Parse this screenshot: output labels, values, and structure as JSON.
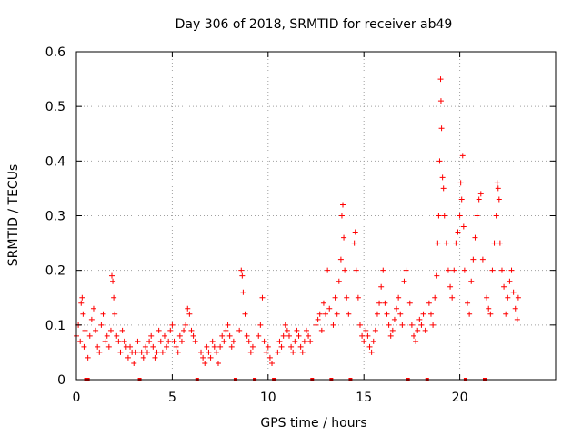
{
  "chart_data": {
    "type": "scatter",
    "title": "Day 306 of 2018, SRMTID for receiver ab49",
    "xlabel": "GPS time / hours",
    "ylabel": "SRMTID / TECUs",
    "xlim": [
      0,
      25
    ],
    "ylim": [
      0,
      0.6
    ],
    "xticks": [
      0,
      5,
      10,
      15,
      20
    ],
    "xtick_labels": [
      "0",
      "5",
      "10",
      "15",
      "20"
    ],
    "yticks": [
      0,
      0.1,
      0.2,
      0.3,
      0.4,
      0.5,
      0.6
    ],
    "ytick_labels": [
      "0",
      "0.1",
      "0.2",
      "0.3",
      "0.4",
      "0.5",
      "0.6"
    ],
    "grid": true,
    "marker": "+",
    "color": "#ff0000",
    "data_gap_hours": [
      0.5,
      0.6,
      3.3,
      6.3,
      8.3,
      9.3,
      10.3,
      12.3,
      13.3,
      14.3,
      17.3,
      18.3,
      20.3,
      21.3
    ],
    "points": [
      [
        0.0,
        0.08
      ],
      [
        0.1,
        0.1
      ],
      [
        0.2,
        0.07
      ],
      [
        0.25,
        0.14
      ],
      [
        0.3,
        0.15
      ],
      [
        0.35,
        0.12
      ],
      [
        0.4,
        0.06
      ],
      [
        0.45,
        0.09
      ],
      [
        0.6,
        0.04
      ],
      [
        0.7,
        0.08
      ],
      [
        0.8,
        0.11
      ],
      [
        0.9,
        0.13
      ],
      [
        1.0,
        0.09
      ],
      [
        1.1,
        0.06
      ],
      [
        1.2,
        0.05
      ],
      [
        1.3,
        0.1
      ],
      [
        1.4,
        0.12
      ],
      [
        1.5,
        0.07
      ],
      [
        1.6,
        0.08
      ],
      [
        1.7,
        0.06
      ],
      [
        1.8,
        0.09
      ],
      [
        1.85,
        0.19
      ],
      [
        1.9,
        0.18
      ],
      [
        1.95,
        0.15
      ],
      [
        2.0,
        0.12
      ],
      [
        2.1,
        0.08
      ],
      [
        2.2,
        0.07
      ],
      [
        2.3,
        0.05
      ],
      [
        2.4,
        0.09
      ],
      [
        2.5,
        0.07
      ],
      [
        2.6,
        0.06
      ],
      [
        2.7,
        0.04
      ],
      [
        2.8,
        0.06
      ],
      [
        2.9,
        0.05
      ],
      [
        3.0,
        0.03
      ],
      [
        3.1,
        0.05
      ],
      [
        3.2,
        0.07
      ],
      [
        3.4,
        0.05
      ],
      [
        3.5,
        0.04
      ],
      [
        3.6,
        0.06
      ],
      [
        3.7,
        0.05
      ],
      [
        3.8,
        0.07
      ],
      [
        3.9,
        0.08
      ],
      [
        4.0,
        0.06
      ],
      [
        4.1,
        0.04
      ],
      [
        4.2,
        0.05
      ],
      [
        4.3,
        0.09
      ],
      [
        4.4,
        0.07
      ],
      [
        4.5,
        0.05
      ],
      [
        4.6,
        0.08
      ],
      [
        4.7,
        0.06
      ],
      [
        4.8,
        0.07
      ],
      [
        4.9,
        0.09
      ],
      [
        5.0,
        0.1
      ],
      [
        5.1,
        0.07
      ],
      [
        5.2,
        0.06
      ],
      [
        5.3,
        0.05
      ],
      [
        5.4,
        0.08
      ],
      [
        5.5,
        0.07
      ],
      [
        5.6,
        0.09
      ],
      [
        5.7,
        0.1
      ],
      [
        5.8,
        0.13
      ],
      [
        5.9,
        0.12
      ],
      [
        6.0,
        0.09
      ],
      [
        6.1,
        0.08
      ],
      [
        6.2,
        0.07
      ],
      [
        6.5,
        0.05
      ],
      [
        6.6,
        0.04
      ],
      [
        6.7,
        0.03
      ],
      [
        6.8,
        0.06
      ],
      [
        6.9,
        0.05
      ],
      [
        7.0,
        0.04
      ],
      [
        7.1,
        0.07
      ],
      [
        7.2,
        0.06
      ],
      [
        7.3,
        0.05
      ],
      [
        7.4,
        0.03
      ],
      [
        7.5,
        0.06
      ],
      [
        7.6,
        0.08
      ],
      [
        7.7,
        0.07
      ],
      [
        7.8,
        0.09
      ],
      [
        7.9,
        0.1
      ],
      [
        8.0,
        0.08
      ],
      [
        8.1,
        0.06
      ],
      [
        8.2,
        0.07
      ],
      [
        8.5,
        0.09
      ],
      [
        8.6,
        0.2
      ],
      [
        8.65,
        0.19
      ],
      [
        8.7,
        0.16
      ],
      [
        8.8,
        0.12
      ],
      [
        8.9,
        0.08
      ],
      [
        9.0,
        0.07
      ],
      [
        9.1,
        0.05
      ],
      [
        9.2,
        0.06
      ],
      [
        9.5,
        0.08
      ],
      [
        9.6,
        0.1
      ],
      [
        9.7,
        0.15
      ],
      [
        9.8,
        0.07
      ],
      [
        9.9,
        0.05
      ],
      [
        10.0,
        0.06
      ],
      [
        10.1,
        0.04
      ],
      [
        10.2,
        0.03
      ],
      [
        10.5,
        0.05
      ],
      [
        10.6,
        0.07
      ],
      [
        10.7,
        0.06
      ],
      [
        10.8,
        0.08
      ],
      [
        10.9,
        0.1
      ],
      [
        11.0,
        0.09
      ],
      [
        11.1,
        0.08
      ],
      [
        11.2,
        0.06
      ],
      [
        11.3,
        0.05
      ],
      [
        11.4,
        0.07
      ],
      [
        11.5,
        0.09
      ],
      [
        11.6,
        0.08
      ],
      [
        11.7,
        0.06
      ],
      [
        11.8,
        0.05
      ],
      [
        11.9,
        0.07
      ],
      [
        12.0,
        0.09
      ],
      [
        12.1,
        0.08
      ],
      [
        12.2,
        0.07
      ],
      [
        12.5,
        0.1
      ],
      [
        12.6,
        0.11
      ],
      [
        12.7,
        0.12
      ],
      [
        12.8,
        0.09
      ],
      [
        12.9,
        0.14
      ],
      [
        13.0,
        0.12
      ],
      [
        13.1,
        0.2
      ],
      [
        13.2,
        0.13
      ],
      [
        13.4,
        0.1
      ],
      [
        13.5,
        0.15
      ],
      [
        13.6,
        0.12
      ],
      [
        13.7,
        0.18
      ],
      [
        13.8,
        0.22
      ],
      [
        13.85,
        0.3
      ],
      [
        13.9,
        0.32
      ],
      [
        13.95,
        0.26
      ],
      [
        14.0,
        0.2
      ],
      [
        14.1,
        0.15
      ],
      [
        14.2,
        0.12
      ],
      [
        14.5,
        0.25
      ],
      [
        14.55,
        0.27
      ],
      [
        14.6,
        0.2
      ],
      [
        14.7,
        0.15
      ],
      [
        14.8,
        0.1
      ],
      [
        14.9,
        0.08
      ],
      [
        15.0,
        0.07
      ],
      [
        15.1,
        0.09
      ],
      [
        15.2,
        0.08
      ],
      [
        15.3,
        0.06
      ],
      [
        15.4,
        0.05
      ],
      [
        15.5,
        0.07
      ],
      [
        15.6,
        0.09
      ],
      [
        15.7,
        0.12
      ],
      [
        15.8,
        0.14
      ],
      [
        15.9,
        0.17
      ],
      [
        16.0,
        0.2
      ],
      [
        16.1,
        0.14
      ],
      [
        16.2,
        0.12
      ],
      [
        16.3,
        0.1
      ],
      [
        16.4,
        0.08
      ],
      [
        16.5,
        0.09
      ],
      [
        16.6,
        0.11
      ],
      [
        16.7,
        0.13
      ],
      [
        16.8,
        0.15
      ],
      [
        16.9,
        0.12
      ],
      [
        17.0,
        0.1
      ],
      [
        17.1,
        0.18
      ],
      [
        17.2,
        0.2
      ],
      [
        17.4,
        0.14
      ],
      [
        17.5,
        0.1
      ],
      [
        17.6,
        0.08
      ],
      [
        17.7,
        0.07
      ],
      [
        17.8,
        0.09
      ],
      [
        17.9,
        0.11
      ],
      [
        18.0,
        0.1
      ],
      [
        18.1,
        0.12
      ],
      [
        18.2,
        0.09
      ],
      [
        18.4,
        0.14
      ],
      [
        18.5,
        0.12
      ],
      [
        18.6,
        0.1
      ],
      [
        18.7,
        0.15
      ],
      [
        18.8,
        0.19
      ],
      [
        18.85,
        0.25
      ],
      [
        18.9,
        0.3
      ],
      [
        18.95,
        0.4
      ],
      [
        19.0,
        0.55
      ],
      [
        19.02,
        0.51
      ],
      [
        19.05,
        0.46
      ],
      [
        19.1,
        0.37
      ],
      [
        19.15,
        0.35
      ],
      [
        19.2,
        0.3
      ],
      [
        19.3,
        0.25
      ],
      [
        19.4,
        0.2
      ],
      [
        19.5,
        0.17
      ],
      [
        19.6,
        0.15
      ],
      [
        19.7,
        0.2
      ],
      [
        19.8,
        0.25
      ],
      [
        19.9,
        0.27
      ],
      [
        20.0,
        0.3
      ],
      [
        20.05,
        0.36
      ],
      [
        20.1,
        0.33
      ],
      [
        20.15,
        0.41
      ],
      [
        20.2,
        0.28
      ],
      [
        20.25,
        0.2
      ],
      [
        20.4,
        0.14
      ],
      [
        20.5,
        0.12
      ],
      [
        20.6,
        0.18
      ],
      [
        20.7,
        0.22
      ],
      [
        20.8,
        0.26
      ],
      [
        20.9,
        0.3
      ],
      [
        21.0,
        0.33
      ],
      [
        21.1,
        0.34
      ],
      [
        21.2,
        0.22
      ],
      [
        21.4,
        0.15
      ],
      [
        21.5,
        0.13
      ],
      [
        21.6,
        0.12
      ],
      [
        21.7,
        0.2
      ],
      [
        21.8,
        0.25
      ],
      [
        21.9,
        0.3
      ],
      [
        21.95,
        0.36
      ],
      [
        22.0,
        0.35
      ],
      [
        22.05,
        0.33
      ],
      [
        22.1,
        0.25
      ],
      [
        22.2,
        0.2
      ],
      [
        22.3,
        0.17
      ],
      [
        22.4,
        0.12
      ],
      [
        22.5,
        0.15
      ],
      [
        22.6,
        0.18
      ],
      [
        22.7,
        0.2
      ],
      [
        22.8,
        0.16
      ],
      [
        22.9,
        0.13
      ],
      [
        23.0,
        0.11
      ],
      [
        23.05,
        0.15
      ]
    ]
  }
}
